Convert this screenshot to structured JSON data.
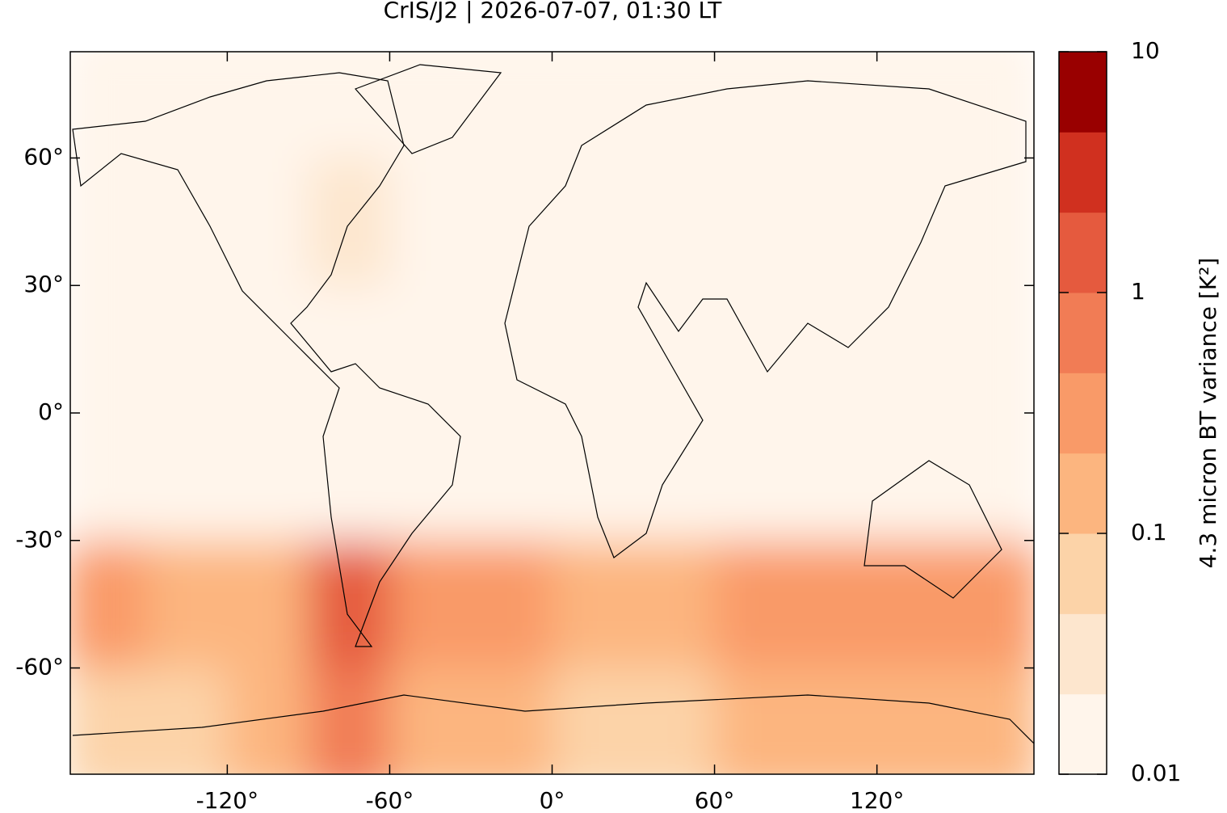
{
  "chart_data": {
    "type": "map",
    "title": "CrIS/J2 | 2026-07-07, 01:30 LT",
    "xlim": [
      -178,
      178
    ],
    "ylim": [
      -85,
      85
    ],
    "xticks": [
      {
        "value": -120,
        "label": "-120°"
      },
      {
        "value": -60,
        "label": "-60°"
      },
      {
        "value": 0,
        "label": "0°"
      },
      {
        "value": 60,
        "label": "60°"
      },
      {
        "value": 120,
        "label": "120°"
      }
    ],
    "yticks": [
      {
        "value": -60,
        "label": "-60°"
      },
      {
        "value": -30,
        "label": "-30°"
      },
      {
        "value": 0,
        "label": "0°"
      },
      {
        "value": 30,
        "label": "30°"
      },
      {
        "value": 60,
        "label": "60°"
      }
    ],
    "lon_edges": [
      -180,
      -150,
      -120,
      -90,
      -60,
      -30,
      0,
      30,
      60,
      90,
      120,
      150,
      180
    ],
    "lat_edges": [
      90,
      60,
      30,
      0,
      -30,
      -60,
      -90
    ],
    "values": [
      [
        0.012,
        0.012,
        0.012,
        0.012,
        0.012,
        0.012,
        0.012,
        0.012,
        0.012,
        0.012,
        0.012,
        0.012
      ],
      [
        0.015,
        0.015,
        0.015,
        0.025,
        0.015,
        0.015,
        0.015,
        0.015,
        0.015,
        0.015,
        0.015,
        0.015
      ],
      [
        0.015,
        0.015,
        0.015,
        0.015,
        0.015,
        0.015,
        0.02,
        0.015,
        0.015,
        0.015,
        0.015,
        0.02
      ],
      [
        0.012,
        0.012,
        0.012,
        0.012,
        0.012,
        0.012,
        0.012,
        0.012,
        0.012,
        0.012,
        0.012,
        0.012
      ],
      [
        0.25,
        0.15,
        0.2,
        1.5,
        0.4,
        0.4,
        0.15,
        0.2,
        0.35,
        0.3,
        0.3,
        0.3
      ],
      [
        0.06,
        0.08,
        0.1,
        0.5,
        0.15,
        0.1,
        0.08,
        0.08,
        0.1,
        0.1,
        0.12,
        0.1
      ]
    ],
    "colorbar": {
      "label": "4.3 micron BT variance [K²]",
      "log": true,
      "lim": [
        0.01,
        10
      ],
      "ticks": [
        0.01,
        0.1,
        1,
        10
      ],
      "colors": [
        "#fff5eb",
        "#fde6ce",
        "#fcd3a8",
        "#fcb57f",
        "#f99a68",
        "#f17c55",
        "#e55a3e",
        "#d0301f",
        "#990000"
      ]
    }
  }
}
